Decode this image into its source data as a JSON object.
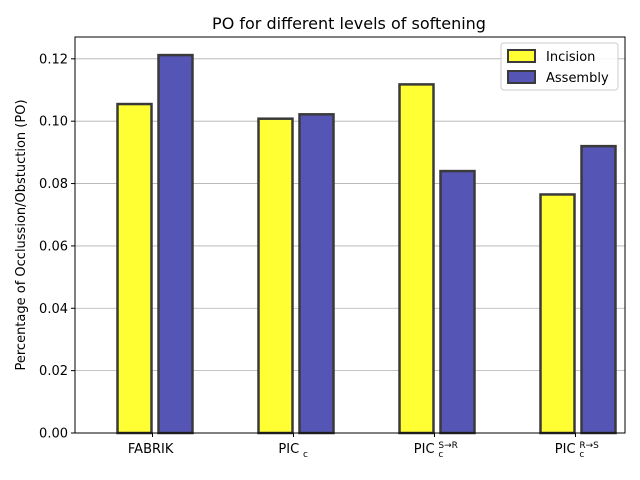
{
  "chart_data": {
    "type": "bar",
    "title": "PO for different levels of softening",
    "xlabel": "",
    "ylabel": "Percentage of Occlussion/Obstuction (PO)",
    "categories": [
      {
        "base": "FABRIK",
        "sub": "",
        "sup": ""
      },
      {
        "base": "PIC",
        "sub": "c",
        "sup": ""
      },
      {
        "base": "PIC",
        "sub": "c",
        "sup": "S→R"
      },
      {
        "base": "PIC",
        "sub": "c",
        "sup": "R→S"
      }
    ],
    "series": [
      {
        "name": "Incision",
        "color": "#ffff33",
        "values": [
          0.1055,
          0.1008,
          0.1118,
          0.0765
        ]
      },
      {
        "name": "Assembly",
        "color": "#5555b5",
        "values": [
          0.1212,
          0.1022,
          0.084,
          0.092
        ]
      }
    ],
    "ylim": [
      0,
      0.127
    ],
    "yticks": [
      "0.00",
      "0.02",
      "0.04",
      "0.06",
      "0.08",
      "0.10",
      "0.12"
    ],
    "grid": "y",
    "legend": "top-right"
  }
}
